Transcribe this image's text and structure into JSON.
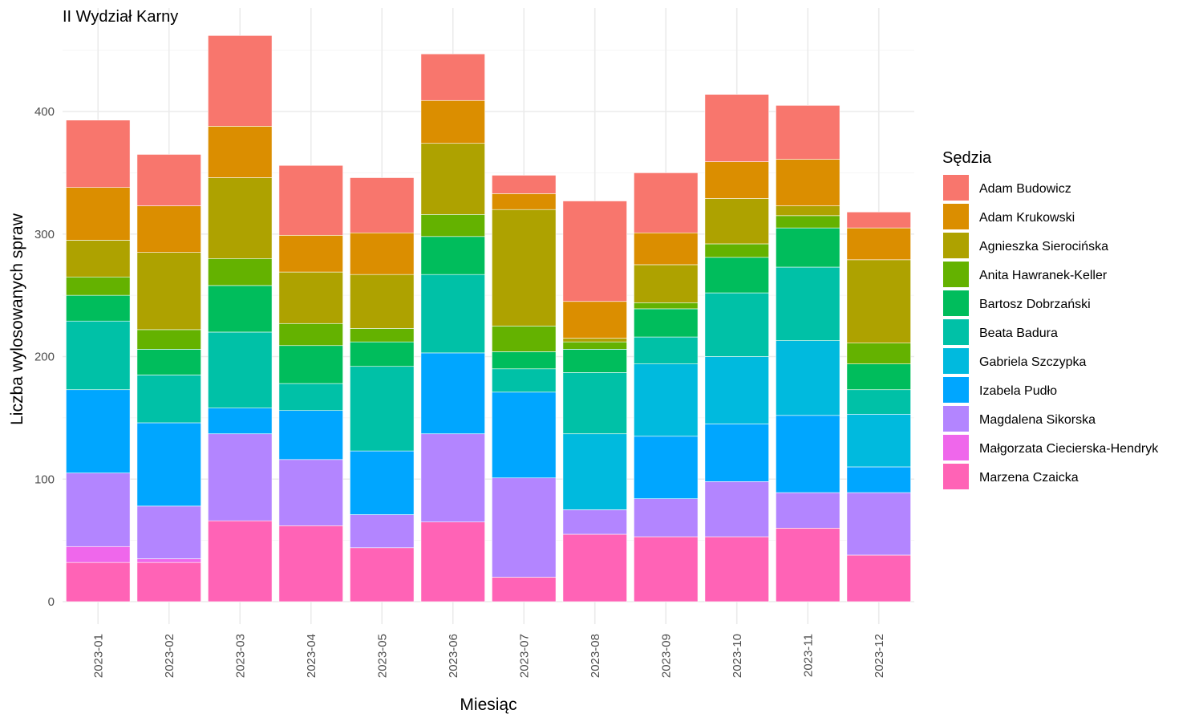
{
  "chart_data": {
    "type": "bar",
    "stacked": true,
    "title": "II Wydział Karny",
    "xlabel": "Miesiąc",
    "ylabel": "Liczba wylosowanych spraw",
    "legend_title": "Sędzia",
    "legend_position": "right",
    "grid": true,
    "ylim": [
      0,
      470
    ],
    "yticks": [
      0,
      100,
      200,
      300,
      400
    ],
    "categories": [
      "2023-01",
      "2023-02",
      "2023-03",
      "2023-04",
      "2023-05",
      "2023-06",
      "2023-07",
      "2023-08",
      "2023-09",
      "2023-10",
      "2023-11",
      "2023-12"
    ],
    "series": [
      {
        "name": "Adam Budowicz",
        "color": "#F8766D",
        "values": [
          55,
          42,
          74,
          57,
          45,
          38,
          15,
          82,
          49,
          55,
          44,
          13
        ]
      },
      {
        "name": "Adam Krukowski",
        "color": "#DB8E00",
        "values": [
          43,
          38,
          42,
          30,
          34,
          35,
          13,
          30,
          26,
          30,
          38,
          26
        ]
      },
      {
        "name": "Agnieszka Sierocińska",
        "color": "#AEA200",
        "values": [
          30,
          63,
          66,
          42,
          44,
          58,
          95,
          3,
          31,
          37,
          8,
          68
        ]
      },
      {
        "name": "Anita Hawranek-Keller",
        "color": "#64B200",
        "values": [
          15,
          16,
          22,
          18,
          11,
          18,
          21,
          6,
          5,
          11,
          10,
          17
        ]
      },
      {
        "name": "Bartosz Dobrzański",
        "color": "#00BD5C",
        "values": [
          21,
          21,
          38,
          31,
          20,
          31,
          14,
          19,
          23,
          29,
          32,
          21
        ]
      },
      {
        "name": "Beata Badura",
        "color": "#00C1A7",
        "values": [
          56,
          39,
          62,
          22,
          69,
          64,
          19,
          50,
          22,
          52,
          60,
          20
        ]
      },
      {
        "name": "Gabriela Szczypka",
        "color": "#00BADE",
        "values": [
          0,
          0,
          0,
          0,
          0,
          0,
          0,
          62,
          59,
          55,
          61,
          43
        ]
      },
      {
        "name": "Izabela Pudło",
        "color": "#00A6FF",
        "values": [
          68,
          68,
          21,
          40,
          52,
          66,
          70,
          0,
          51,
          47,
          63,
          21
        ]
      },
      {
        "name": "Magdalena Sikorska",
        "color": "#B385FF",
        "values": [
          60,
          43,
          71,
          54,
          27,
          72,
          81,
          20,
          31,
          45,
          29,
          51
        ]
      },
      {
        "name": "Małgorzata Ciecierska-Hendryk",
        "color": "#EF67EB",
        "values": [
          13,
          3,
          0,
          0,
          0,
          0,
          0,
          0,
          0,
          0,
          0,
          0
        ]
      },
      {
        "name": "Marzena Czaicka",
        "color": "#FF63B6",
        "values": [
          32,
          32,
          66,
          62,
          44,
          65,
          20,
          55,
          53,
          53,
          60,
          38
        ]
      }
    ]
  }
}
